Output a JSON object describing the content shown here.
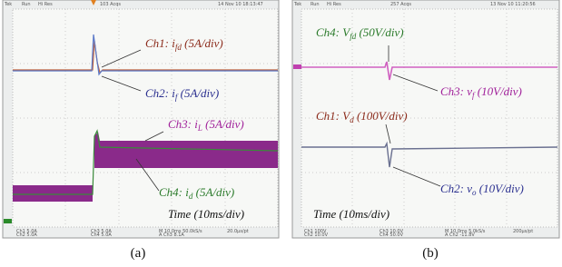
{
  "panels": [
    {
      "caption": "(a)",
      "header": [
        "Tek",
        "Run",
        "Hi Res",
        "103 Acqs",
        "14 Nov 10 18:13:47"
      ],
      "footer": [
        "Ch1 5.0A",
        "Ch2 5.0A",
        "Ch3 5.0A",
        "Ch4 5.0A",
        "M 10.0ms 50.0kS/s",
        "A Ch3 8.1A",
        "20.0µs/pt"
      ],
      "labels": [
        {
          "text": "Ch1: i",
          "sub": "fd",
          "rest": " (5A/div)",
          "color": "#8b2a1a"
        },
        {
          "text": "Ch2: i",
          "sub": "f",
          "rest": " (5A/div)",
          "color": "#2a2f8f"
        },
        {
          "text": "Ch3: i",
          "sub": "L",
          "rest": " (5A/div)",
          "color": "#a0209a"
        },
        {
          "text": "Ch4: i",
          "sub": "d",
          "rest": " (5A/div)",
          "color": "#2a7a2a"
        },
        {
          "text": "Time (10ms/div)",
          "color": "#111111"
        }
      ]
    },
    {
      "caption": "(b)",
      "header": [
        "Tek",
        "Run",
        "Hi Res",
        "257 Acqs",
        "13 Nov 10 11:20:56"
      ],
      "footer": [
        "Ch1 100V",
        "Ch2 10.0V",
        "Ch3 10.0V",
        "Ch4 50.0V",
        "M 10.0ms 5.0kS/s",
        "A Ch2 -11.8V",
        "200µs/pt"
      ],
      "labels": [
        {
          "text": "Ch4: V",
          "sub": "fd",
          "rest": " (50V/div)",
          "color": "#2a7a2a"
        },
        {
          "text": "Ch3: v",
          "sub": "f",
          "rest": " (10V/div)",
          "color": "#a0209a"
        },
        {
          "text": "Ch1: V",
          "sub": "d",
          "rest": " (100V/div)",
          "color": "#8b2a1a"
        },
        {
          "text": "Ch2: v",
          "sub": "o",
          "rest": " (10V/div)",
          "color": "#2a2f8f"
        },
        {
          "text": "Time (10ms/div)",
          "color": "#111111"
        }
      ]
    }
  ]
}
